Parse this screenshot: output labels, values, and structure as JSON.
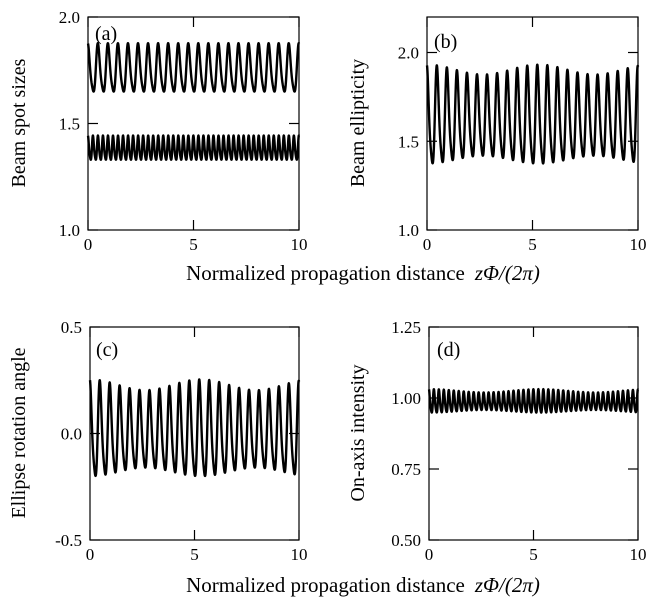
{
  "figure": {
    "xlabel_top": "Normalized propagation distance",
    "xlabel_bottom": "Normalized propagation distance",
    "xlabel_math": "zΦ/(2π)"
  },
  "chart_data": [
    {
      "type": "line",
      "panel_label": "(a)",
      "ylabel": "Beam spot sizes",
      "xlim": [
        0,
        10
      ],
      "ylim": [
        1.0,
        2.0
      ],
      "xticks": [
        0,
        5,
        10
      ],
      "xtick_labels": [
        "0",
        "5",
        "10"
      ],
      "yticks": [
        1.0,
        1.5,
        2.0
      ],
      "ytick_labels": [
        "1.0",
        "1.5",
        "2.0"
      ],
      "series": [
        {
          "kind": "oscillation",
          "mean": 1.75,
          "amplitude": 0.11,
          "cycles_per_unit": 2.1,
          "mod_depth": 0.0
        },
        {
          "kind": "oscillation",
          "mean": 1.38,
          "amplitude": 0.055,
          "cycles_per_unit": 4.2,
          "mod_depth": 0.0
        }
      ]
    },
    {
      "type": "line",
      "panel_label": "(b)",
      "ylabel": "Beam ellipticity",
      "xlim": [
        0,
        10
      ],
      "ylim": [
        1.0,
        2.2
      ],
      "xticks": [
        0,
        5,
        10
      ],
      "xtick_labels": [
        "0",
        "5",
        "10"
      ],
      "yticks": [
        1.0,
        1.5,
        2.0
      ],
      "ytick_labels": [
        "1.0",
        "1.5",
        "2.0"
      ],
      "series": [
        {
          "kind": "oscillation",
          "mean": 1.62,
          "amplitude": 0.27,
          "cycles_per_unit": 2.1,
          "mod_depth": 0.18
        }
      ]
    },
    {
      "type": "line",
      "panel_label": "(c)",
      "ylabel": "Ellipse rotation angle",
      "xlim": [
        0,
        10
      ],
      "ylim": [
        -0.5,
        0.5
      ],
      "xticks": [
        0,
        5,
        10
      ],
      "xtick_labels": [
        "0",
        "5",
        "10"
      ],
      "yticks": [
        -0.5,
        0.0,
        0.5
      ],
      "ytick_labels": [
        "-0.5",
        "0.0",
        "0.5"
      ],
      "series": [
        {
          "kind": "oscillation",
          "mean": 0.0,
          "amplitude": 0.22,
          "cycles_per_unit": 2.1,
          "mod_depth": 0.2
        }
      ]
    },
    {
      "type": "line",
      "panel_label": "(d)",
      "ylabel": "On-axis intensity",
      "xlim": [
        0,
        10
      ],
      "ylim": [
        0.5,
        1.25
      ],
      "xticks": [
        0,
        5,
        10
      ],
      "xtick_labels": [
        "0",
        "5",
        "10"
      ],
      "yticks": [
        0.5,
        0.75,
        1.0,
        1.25
      ],
      "ytick_labels": [
        "0.50",
        "0.75",
        "1.00",
        "1.25"
      ],
      "series": [
        {
          "kind": "oscillation",
          "mean": 0.985,
          "amplitude": 0.04,
          "cycles_per_unit": 4.2,
          "mod_depth": 0.25
        }
      ]
    }
  ]
}
